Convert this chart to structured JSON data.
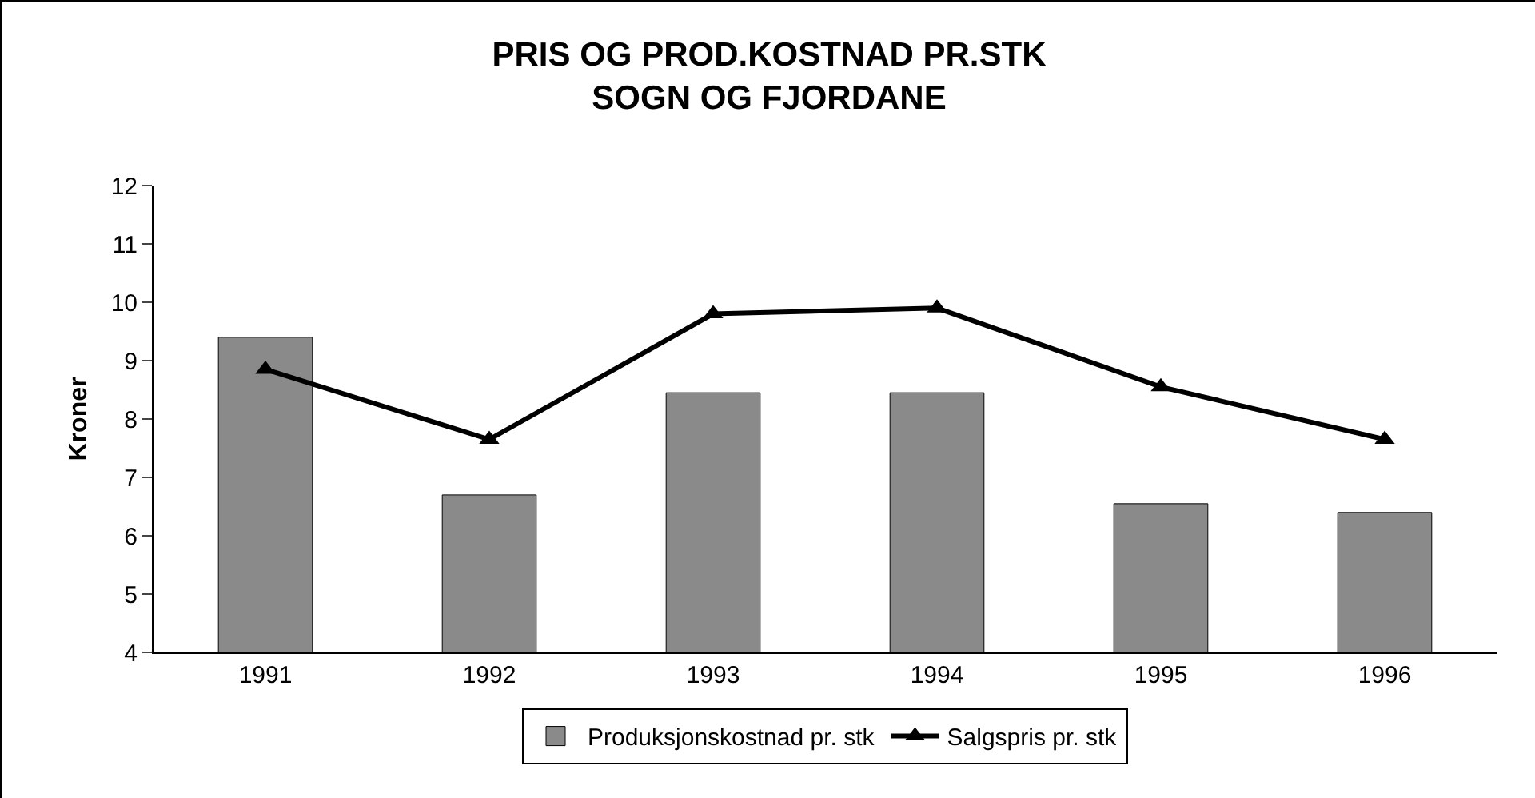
{
  "chart_data": {
    "type": "bar",
    "title": "PRIS OG PROD.KOSTNAD PR.STK\nSOGN OG FJORDANE",
    "ylabel": "Kroner",
    "categories": [
      "1991",
      "1992",
      "1993",
      "1994",
      "1995",
      "1996"
    ],
    "series": [
      {
        "name": "Produksjonskostnad pr. stk",
        "color": "#8a8a8a",
        "values": [
          9.4,
          6.7,
          8.45,
          8.45,
          6.55,
          6.4
        ]
      },
      {
        "name": "Salgspris pr. stk",
        "type": "line",
        "color": "#000000",
        "marker": "triangle",
        "values": [
          8.85,
          7.65,
          9.8,
          9.9,
          8.55,
          7.65
        ]
      }
    ],
    "ylim": [
      4,
      12
    ],
    "yticks": [
      4,
      5,
      6,
      7,
      8,
      9,
      10,
      11,
      12
    ],
    "grid": false,
    "legend": "bottom"
  }
}
